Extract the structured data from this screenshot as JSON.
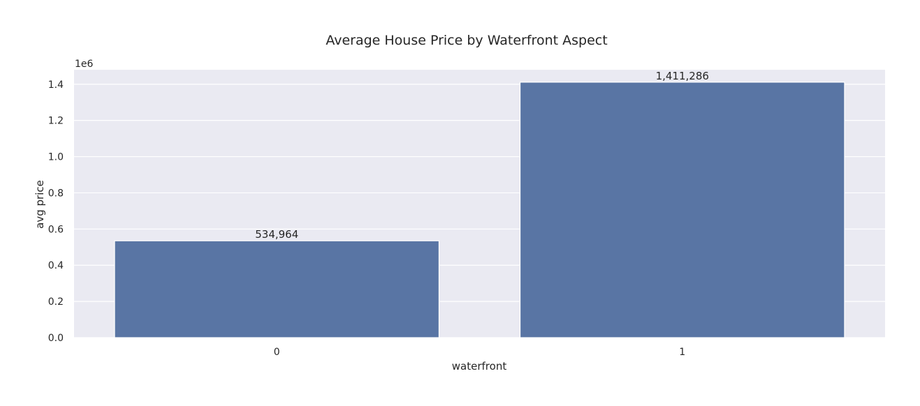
{
  "chart_data": {
    "type": "bar",
    "title": "Average House Price by Waterfront Aspect",
    "xlabel": "waterfront",
    "ylabel": "avg price",
    "categories": [
      "0",
      "1"
    ],
    "values": [
      534964,
      1411286
    ],
    "data_labels": [
      "534,964",
      "1,411,286"
    ],
    "ylim": [
      0,
      1480000
    ],
    "yticks": [
      0,
      200000,
      400000,
      600000,
      800000,
      1000000,
      1200000,
      1400000
    ],
    "ytick_labels": [
      "0.0",
      "0.2",
      "0.4",
      "0.6",
      "0.8",
      "1.0",
      "1.2",
      "1.4"
    ],
    "y_offset_label": "1e6",
    "grid": true,
    "colors": {
      "bar": "#5975a4",
      "plot_bg": "#eaeaf2",
      "grid": "#ffffff"
    }
  }
}
